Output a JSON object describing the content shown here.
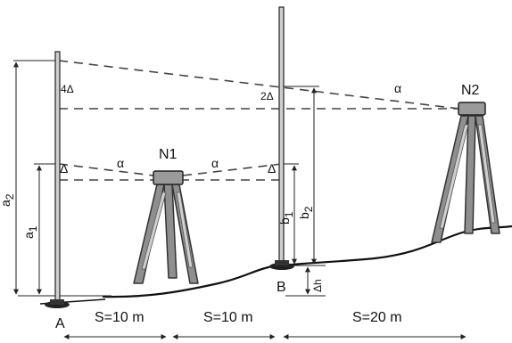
{
  "labels": {
    "point_a": "A",
    "point_b": "B",
    "station_n1": "N1",
    "station_n2": "N2",
    "delta_n1_left": "Δ",
    "delta_n1_right": "Δ",
    "four_delta": "4Δ",
    "two_delta": "2Δ",
    "alpha_n1_left": "α",
    "alpha_n1_right": "α",
    "alpha_n2": "α",
    "a1": "a",
    "a1_sub": "1",
    "a2": "a",
    "a2_sub": "2",
    "b1": "b",
    "b1_sub": "1",
    "b2": "b",
    "b2_sub": "2",
    "delta_h": "Δh",
    "dist_1": "S=10 m",
    "dist_2": "S=10 m",
    "dist_3": "S=20 m"
  }
}
